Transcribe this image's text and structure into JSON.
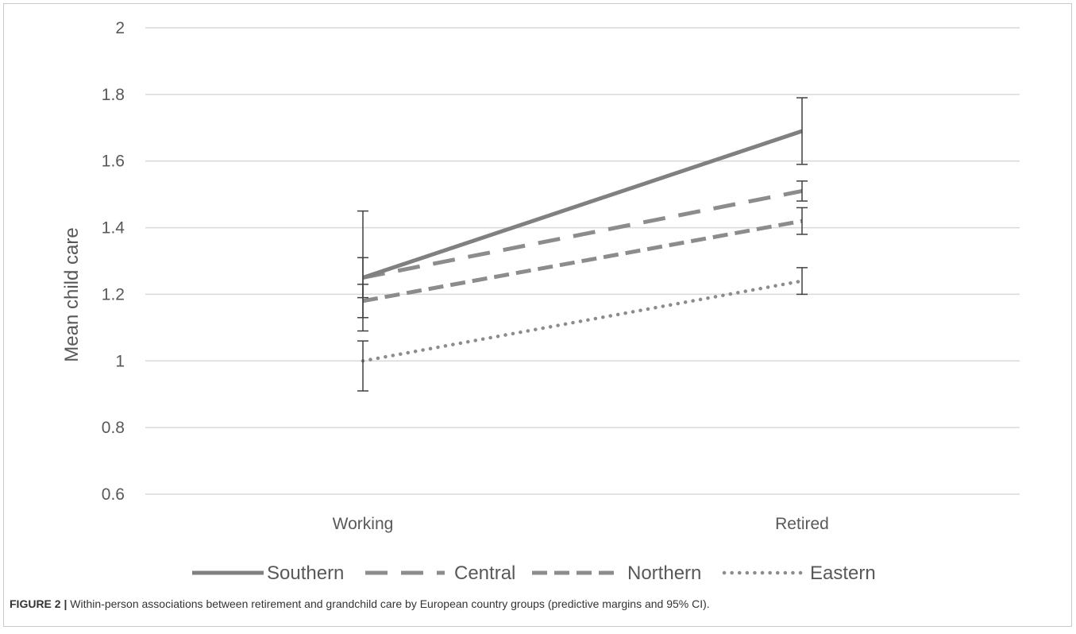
{
  "figure": {
    "label": "FIGURE 2 |",
    "caption": "Within-person associations between retirement and grandchild care by European country groups (predictive margins and 95% CI)."
  },
  "chart_data": {
    "type": "line",
    "title": "",
    "xlabel": "",
    "ylabel": "Mean child care",
    "categories": [
      "Working",
      "Retired"
    ],
    "ylim": [
      0.6,
      2
    ],
    "yticks": [
      "0.6",
      "0.8",
      "1",
      "1.2",
      "1.4",
      "1.6",
      "1.8",
      "2"
    ],
    "grid": true,
    "legend_position": "bottom",
    "series": [
      {
        "name": "Southern",
        "values": [
          1.25,
          1.69
        ],
        "ci": [
          [
            1.09,
            1.45
          ],
          [
            1.59,
            1.79
          ]
        ],
        "style": "solid",
        "color": "#808080"
      },
      {
        "name": "Central",
        "values": [
          1.25,
          1.51
        ],
        "ci": [
          [
            1.19,
            1.31
          ],
          [
            1.48,
            1.54
          ]
        ],
        "style": "long-dash",
        "color": "#8c8c8c"
      },
      {
        "name": "Northern",
        "values": [
          1.18,
          1.42
        ],
        "ci": [
          [
            1.13,
            1.23
          ],
          [
            1.38,
            1.46
          ]
        ],
        "style": "dash",
        "color": "#8c8c8c"
      },
      {
        "name": "Eastern",
        "values": [
          1.0,
          1.24
        ],
        "ci": [
          [
            0.91,
            1.06
          ],
          [
            1.2,
            1.28
          ]
        ],
        "style": "dot",
        "color": "#8c8c8c"
      }
    ]
  }
}
